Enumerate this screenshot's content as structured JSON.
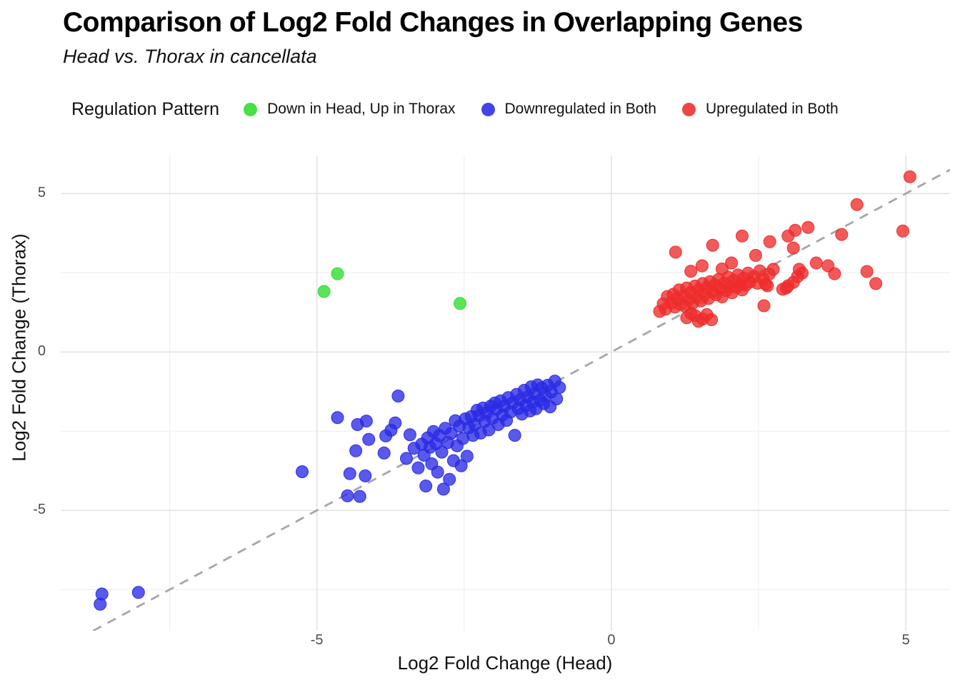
{
  "title": "Comparison of Log2 Fold Changes in Overlapping Genes",
  "subtitle": "Head vs. Thorax in cancellata",
  "legend": {
    "title": "Regulation Pattern",
    "items": [
      {
        "label": "Down in Head, Up in Thorax",
        "color": "#2ddc2d"
      },
      {
        "label": "Downregulated in Both",
        "color": "#2a2ae6"
      },
      {
        "label": "Upregulated in Both",
        "color": "#ee2b2b"
      }
    ]
  },
  "chart_data": {
    "type": "scatter",
    "title": "Comparison of Log2 Fold Changes in Overlapping Genes",
    "subtitle": "Head vs. Thorax in cancellata",
    "xlabel": "Log2 Fold Change (Head)",
    "ylabel": "Log2 Fold Change (Thorax)",
    "xlim": [
      -9.35,
      5.75
    ],
    "ylim": [
      -8.8,
      6.2
    ],
    "x_major_ticks": [
      -5,
      0,
      5
    ],
    "x_minor_ticks": [
      -7.5,
      -2.5,
      2.5
    ],
    "y_major_ticks": [
      -5,
      0,
      5
    ],
    "y_minor_ticks": [
      -7.5,
      -2.5,
      2.5
    ],
    "grid": true,
    "legend_position": "top",
    "colors": {
      "major_grid": "#e3e3e3",
      "minor_grid": "#efefef",
      "reference_line": "#a6a6a6"
    },
    "reference_line": {
      "type": "identity",
      "style": "dashed",
      "color": "#a6a6a6"
    },
    "point_radius": 8.5,
    "point_opacity": 0.78,
    "series": [
      {
        "name": "Down in Head, Up in Thorax",
        "color": "#2ddc2d",
        "points": [
          [
            -4.65,
            2.47
          ],
          [
            -4.88,
            1.91
          ],
          [
            -2.57,
            1.53
          ]
        ]
      },
      {
        "name": "Downregulated in Both",
        "color": "#2a2ae6",
        "points": [
          [
            -8.65,
            -7.64
          ],
          [
            -8.68,
            -7.96
          ],
          [
            -8.03,
            -7.59
          ],
          [
            -5.25,
            -3.78
          ],
          [
            -4.65,
            -2.07
          ],
          [
            -4.48,
            -4.54
          ],
          [
            -4.44,
            -3.84
          ],
          [
            -4.34,
            -3.12
          ],
          [
            -4.31,
            -2.29
          ],
          [
            -4.27,
            -4.56
          ],
          [
            -4.18,
            -3.91
          ],
          [
            -4.16,
            -2.18
          ],
          [
            -4.12,
            -2.76
          ],
          [
            -3.86,
            -3.19
          ],
          [
            -3.83,
            -2.65
          ],
          [
            -3.74,
            -2.47
          ],
          [
            -3.67,
            -2.24
          ],
          [
            -3.62,
            -1.39
          ],
          [
            -0.88,
            -1.12
          ],
          [
            -0.93,
            -1.48
          ],
          [
            -0.96,
            -0.92
          ],
          [
            -1.02,
            -1.26
          ],
          [
            -1.04,
            -1.73
          ],
          [
            -1.08,
            -1.05
          ],
          [
            -1.12,
            -1.38
          ],
          [
            -1.15,
            -1.63
          ],
          [
            -1.18,
            -1.14
          ],
          [
            -1.21,
            -1.52
          ],
          [
            -1.25,
            -1.04
          ],
          [
            -1.28,
            -1.79
          ],
          [
            -1.3,
            -1.32
          ],
          [
            -1.33,
            -1.58
          ],
          [
            -1.36,
            -1.1
          ],
          [
            -1.38,
            -1.86
          ],
          [
            -1.42,
            -1.42
          ],
          [
            -1.45,
            -1.69
          ],
          [
            -1.48,
            -1.21
          ],
          [
            -1.52,
            -1.96
          ],
          [
            -1.55,
            -1.51
          ],
          [
            -1.58,
            -1.79
          ],
          [
            -1.61,
            -1.34
          ],
          [
            -1.64,
            -2.63
          ],
          [
            -1.68,
            -1.61
          ],
          [
            -1.71,
            -1.89
          ],
          [
            -1.75,
            -1.44
          ],
          [
            -1.78,
            -2.16
          ],
          [
            -1.82,
            -1.71
          ],
          [
            -1.85,
            -1.99
          ],
          [
            -1.88,
            -1.54
          ],
          [
            -1.92,
            -2.29
          ],
          [
            -1.95,
            -1.81
          ],
          [
            -1.98,
            -1.61
          ],
          [
            -2.02,
            -2.09
          ],
          [
            -2.05,
            -1.71
          ],
          [
            -2.08,
            -2.46
          ],
          [
            -2.12,
            -1.91
          ],
          [
            -2.15,
            -2.19
          ],
          [
            -2.18,
            -1.77
          ],
          [
            -2.22,
            -2.56
          ],
          [
            -2.25,
            -2.01
          ],
          [
            -2.28,
            -1.84
          ],
          [
            -2.32,
            -2.29
          ],
          [
            -2.35,
            -2.63
          ],
          [
            -2.38,
            -2.04
          ],
          [
            -2.42,
            -2.39
          ],
          [
            -2.45,
            -3.29
          ],
          [
            -2.48,
            -2.11
          ],
          [
            -2.52,
            -2.73
          ],
          [
            -2.55,
            -3.59
          ],
          [
            -2.58,
            -2.34
          ],
          [
            -2.62,
            -2.96
          ],
          [
            -2.65,
            -2.17
          ],
          [
            -2.68,
            -3.43
          ],
          [
            -2.72,
            -2.57
          ],
          [
            -2.75,
            -4.02
          ],
          [
            -2.78,
            -2.86
          ],
          [
            -2.82,
            -2.41
          ],
          [
            -2.85,
            -4.33
          ],
          [
            -2.88,
            -3.16
          ],
          [
            -2.92,
            -2.64
          ],
          [
            -2.95,
            -3.79
          ],
          [
            -2.98,
            -2.89
          ],
          [
            -3.02,
            -2.51
          ],
          [
            -3.05,
            -3.53
          ],
          [
            -3.08,
            -3.01
          ],
          [
            -3.12,
            -2.71
          ],
          [
            -3.15,
            -4.23
          ],
          [
            -3.18,
            -3.26
          ],
          [
            -3.22,
            -2.91
          ],
          [
            -3.28,
            -3.66
          ],
          [
            -3.35,
            -3.04
          ],
          [
            -3.42,
            -2.61
          ],
          [
            -3.48,
            -3.36
          ]
        ]
      },
      {
        "name": "Upregulated in Both",
        "color": "#ee2b2b",
        "points": [
          [
            1.02,
            1.55
          ],
          [
            1.05,
            1.82
          ],
          [
            1.08,
            1.42
          ],
          [
            1.12,
            1.68
          ],
          [
            1.15,
            1.96
          ],
          [
            1.18,
            1.51
          ],
          [
            1.22,
            1.78
          ],
          [
            1.25,
            1.44
          ],
          [
            1.28,
            2.02
          ],
          [
            1.32,
            1.66
          ],
          [
            1.35,
            1.88
          ],
          [
            1.38,
            1.54
          ],
          [
            1.42,
            2.08
          ],
          [
            1.45,
            1.72
          ],
          [
            1.48,
            1.96
          ],
          [
            1.52,
            1.61
          ],
          [
            1.55,
            2.16
          ],
          [
            1.58,
            1.82
          ],
          [
            1.62,
            2.03
          ],
          [
            1.65,
            1.69
          ],
          [
            1.68,
            2.22
          ],
          [
            1.72,
            1.91
          ],
          [
            1.75,
            2.12
          ],
          [
            1.78,
            1.81
          ],
          [
            1.82,
            2.29
          ],
          [
            1.85,
            2.01
          ],
          [
            1.88,
            1.74
          ],
          [
            1.92,
            2.18
          ],
          [
            1.95,
            1.94
          ],
          [
            1.98,
            2.36
          ],
          [
            2.02,
            2.07
          ],
          [
            2.05,
            1.87
          ],
          [
            2.08,
            2.26
          ],
          [
            2.12,
            2.04
          ],
          [
            2.15,
            2.43
          ],
          [
            2.18,
            2.14
          ],
          [
            2.22,
            1.96
          ],
          [
            2.25,
            2.33
          ],
          [
            2.28,
            2.11
          ],
          [
            2.32,
            2.49
          ],
          [
            2.35,
            2.21
          ],
          [
            2.42,
            2.38
          ],
          [
            2.48,
            2.17
          ],
          [
            2.52,
            2.56
          ],
          [
            2.58,
            2.31
          ],
          [
            2.62,
            2.14
          ],
          [
            2.68,
            2.46
          ],
          [
            2.75,
            2.61
          ],
          [
            1.28,
            1.08
          ],
          [
            1.42,
            1.15
          ],
          [
            1.55,
            1.04
          ],
          [
            1.62,
            1.18
          ],
          [
            1.7,
            1.02
          ],
          [
            1.48,
            0.97
          ],
          [
            1.35,
            1.22
          ],
          [
            1.09,
            3.15
          ],
          [
            1.72,
            3.37
          ],
          [
            2.22,
            3.66
          ],
          [
            2.69,
            3.48
          ],
          [
            2.04,
            2.81
          ],
          [
            1.54,
            2.72
          ],
          [
            1.35,
            2.55
          ],
          [
            2.45,
            3.05
          ],
          [
            1.88,
            2.62
          ],
          [
            2.91,
            1.98
          ],
          [
            2.97,
            2.02
          ],
          [
            3.0,
            2.09
          ],
          [
            3.09,
            2.2
          ],
          [
            3.16,
            2.38
          ],
          [
            3.24,
            2.49
          ],
          [
            3.19,
            2.61
          ],
          [
            3.48,
            2.81
          ],
          [
            3.68,
            2.72
          ],
          [
            3.79,
            2.47
          ],
          [
            3.0,
            3.66
          ],
          [
            3.12,
            3.84
          ],
          [
            3.34,
            3.93
          ],
          [
            3.09,
            3.28
          ],
          [
            3.91,
            3.71
          ],
          [
            4.17,
            4.65
          ],
          [
            4.34,
            2.54
          ],
          [
            4.49,
            2.16
          ],
          [
            4.95,
            3.82
          ],
          [
            5.07,
            5.53
          ],
          [
            2.59,
            1.46
          ],
          [
            2.65,
            2.09
          ],
          [
            0.95,
            1.75
          ],
          [
            0.92,
            1.35
          ],
          [
            0.88,
            1.52
          ],
          [
            0.82,
            1.28
          ]
        ]
      }
    ]
  }
}
